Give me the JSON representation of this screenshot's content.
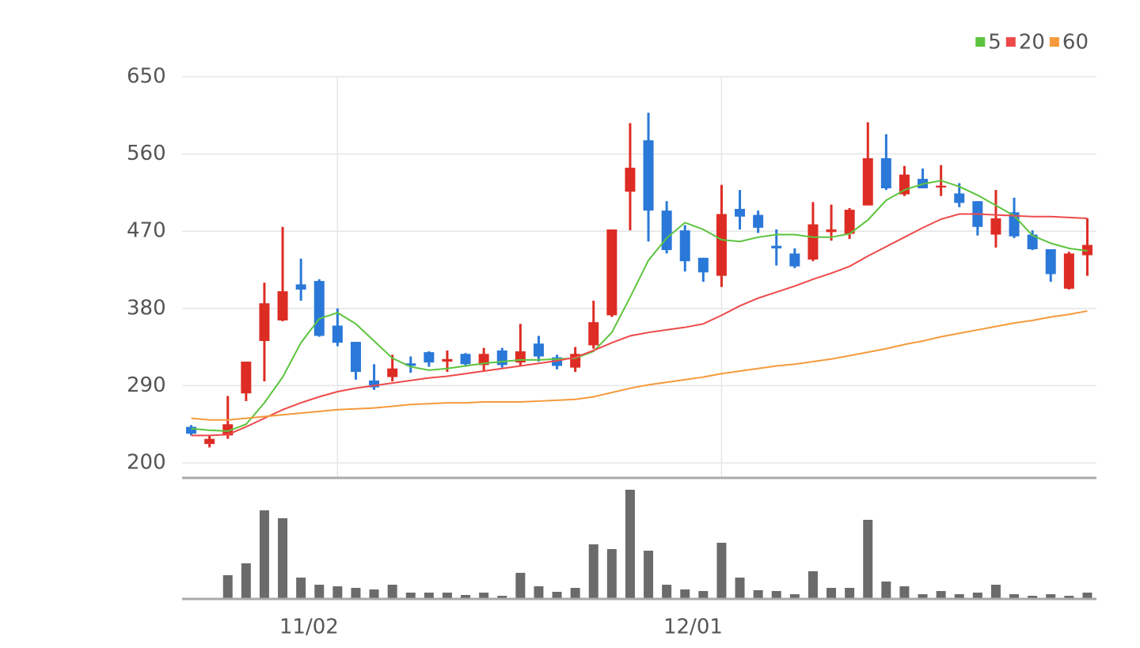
{
  "chart_data": {
    "type": "candlestick",
    "categories": [
      null,
      null,
      null,
      null,
      null,
      null,
      null,
      null,
      "11/02",
      null,
      null,
      null,
      null,
      null,
      null,
      null,
      null,
      null,
      null,
      null,
      null,
      null,
      null,
      null,
      null,
      null,
      null,
      null,
      null,
      "12/01",
      null,
      null,
      null,
      null,
      null,
      null,
      null,
      null,
      null,
      null,
      null,
      null,
      null,
      null,
      null,
      null,
      null,
      null,
      null,
      null
    ],
    "open": [
      242,
      222,
      232,
      281,
      342,
      366,
      408,
      412,
      360,
      341,
      296,
      300,
      316,
      329,
      318,
      327,
      314,
      331,
      317,
      339,
      323,
      311,
      337,
      372,
      516,
      576,
      494,
      471,
      439,
      418,
      496,
      489,
      453,
      444,
      437,
      469,
      467,
      500,
      555,
      513,
      531,
      521,
      514,
      505,
      466,
      492,
      466,
      449,
      403,
      442
    ],
    "high": [
      244,
      232,
      278,
      318,
      410,
      475,
      438,
      414,
      380,
      341,
      315,
      326,
      324,
      330,
      331,
      328,
      334,
      334,
      362,
      348,
      326,
      335,
      389,
      472,
      596,
      608,
      505,
      477,
      439,
      524,
      518,
      494,
      472,
      450,
      504,
      501,
      497,
      597,
      583,
      546,
      543,
      547,
      526,
      505,
      518,
      509,
      471,
      449,
      446,
      485
    ],
    "low": [
      232,
      218,
      228,
      272,
      295,
      365,
      389,
      347,
      336,
      297,
      285,
      295,
      305,
      312,
      306,
      312,
      306,
      311,
      313,
      318,
      309,
      306,
      333,
      370,
      471,
      458,
      444,
      423,
      411,
      405,
      472,
      468,
      430,
      427,
      435,
      459,
      461,
      500,
      518,
      511,
      520,
      511,
      498,
      465,
      451,
      462,
      448,
      411,
      402,
      418
    ],
    "close": [
      234,
      228,
      245,
      318,
      386,
      400,
      402,
      348,
      340,
      306,
      288,
      310,
      313,
      317,
      321,
      315,
      327,
      314,
      330,
      324,
      313,
      327,
      364,
      472,
      544,
      494,
      448,
      435,
      422,
      490,
      487,
      474,
      450,
      429,
      478,
      472,
      495,
      555,
      520,
      536,
      520,
      523,
      503,
      475,
      485,
      464,
      449,
      420,
      444,
      454
    ],
    "up_color": "#dd2c24",
    "down_color": "#2a78d8",
    "series": [
      {
        "name": "5",
        "color": "#5cc43e",
        "values": [
          240,
          238,
          237,
          245,
          270,
          300,
          340,
          368,
          375,
          362,
          342,
          322,
          312,
          308,
          310,
          313,
          316,
          318,
          320,
          320,
          321,
          322,
          330,
          352,
          393,
          436,
          462,
          480,
          472,
          460,
          458,
          463,
          466,
          466,
          463,
          463,
          467,
          483,
          506,
          518,
          525,
          529,
          522,
          512,
          500,
          488,
          465,
          456,
          450,
          447
        ]
      },
      {
        "name": "20",
        "color": "#ee4a4a",
        "values": [
          232,
          232,
          233,
          242,
          252,
          262,
          270,
          277,
          283,
          287,
          290,
          293,
          296,
          299,
          301,
          304,
          307,
          310,
          313,
          316,
          319,
          323,
          331,
          340,
          348,
          352,
          355,
          358,
          362,
          372,
          383,
          392,
          399,
          406,
          414,
          421,
          429,
          441,
          452,
          463,
          474,
          484,
          490,
          490,
          489,
          488,
          487,
          487,
          486,
          485
        ]
      },
      {
        "name": "60",
        "color": "#f59a3c",
        "values": [
          252,
          250,
          250,
          252,
          254,
          256,
          258,
          260,
          262,
          263,
          264,
          266,
          268,
          269,
          270,
          270,
          271,
          271,
          271,
          272,
          273,
          274,
          277,
          282,
          287,
          291,
          294,
          297,
          300,
          304,
          307,
          310,
          313,
          315,
          318,
          321,
          325,
          329,
          333,
          338,
          342,
          347,
          351,
          355,
          359,
          363,
          366,
          370,
          373,
          377
        ]
      }
    ],
    "volume": {
      "color": "#6b6b6b",
      "values": [
        null,
        null,
        30,
        45,
        112,
        102,
        27,
        18,
        16,
        14,
        12,
        18,
        8,
        8,
        8,
        5,
        8,
        4,
        33,
        16,
        9,
        14,
        69,
        63,
        138,
        61,
        18,
        12,
        10,
        71,
        27,
        11,
        10,
        6,
        35,
        14,
        14,
        100,
        22,
        16,
        6,
        10,
        6,
        8,
        18,
        6,
        4,
        6,
        4,
        8
      ]
    },
    "ylim": [
      182.5,
      650
    ],
    "yticks": [
      200,
      290,
      380,
      470,
      560,
      650
    ],
    "grid": true,
    "legend": "top-right"
  }
}
